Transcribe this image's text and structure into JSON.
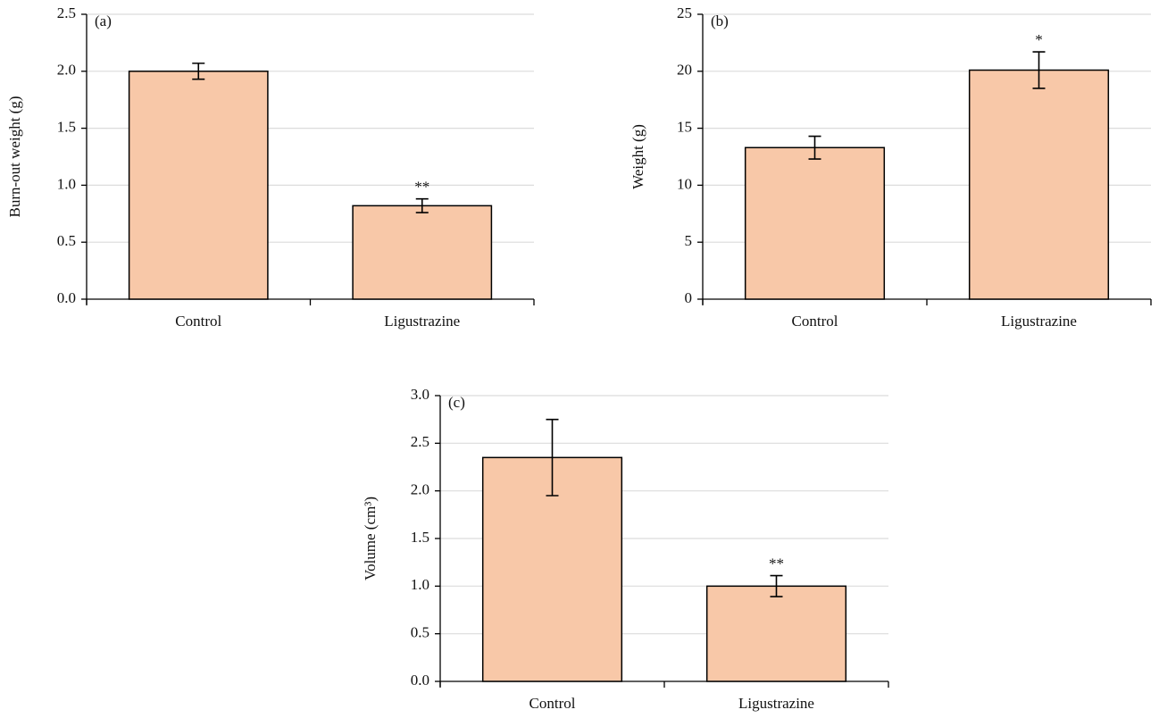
{
  "chart_data": [
    {
      "type": "bar",
      "panel_label": "(a)",
      "ylabel": "Burn-out weight (g)",
      "categories": [
        "Control",
        "Ligustrazine"
      ],
      "values": [
        2.0,
        0.82
      ],
      "errors": [
        0.07,
        0.06
      ],
      "annotations": [
        null,
        "**"
      ],
      "color": "#f8c8a8",
      "ylim": [
        0,
        2.5
      ],
      "yticks": [
        {
          "value": 0,
          "label": "0.0"
        },
        0.5,
        {
          "value": 1,
          "label": "1.0"
        },
        1.5,
        {
          "value": 2,
          "label": "2.0"
        },
        2.5
      ],
      "grid": true
    },
    {
      "type": "bar",
      "panel_label": "(b)",
      "ylabel": "Weight (g)",
      "categories": [
        "Control",
        "Ligustrazine"
      ],
      "values": [
        13.3,
        20.1
      ],
      "errors": [
        1.0,
        1.6
      ],
      "annotations": [
        null,
        "*"
      ],
      "color": "#f8c8a8",
      "ylim": [
        0,
        25
      ],
      "yticks": [
        0,
        5,
        10,
        15,
        20,
        25
      ],
      "grid": true
    },
    {
      "type": "bar",
      "panel_label": "(c)",
      "ylabel": "Volume (cm³)",
      "categories": [
        "Control",
        "Ligustrazine"
      ],
      "values": [
        2.35,
        1.0
      ],
      "errors": [
        0.4,
        0.11
      ],
      "annotations": [
        null,
        "**"
      ],
      "color": "#f8c8a8",
      "ylim": [
        0,
        3
      ],
      "yticks": [
        {
          "value": 0,
          "label": "0.0"
        },
        0.5,
        {
          "value": 1,
          "label": "1.0"
        },
        1.5,
        {
          "value": 2,
          "label": "2.0"
        },
        2.5,
        {
          "value": 3,
          "label": "3.0"
        }
      ],
      "grid": true
    }
  ]
}
